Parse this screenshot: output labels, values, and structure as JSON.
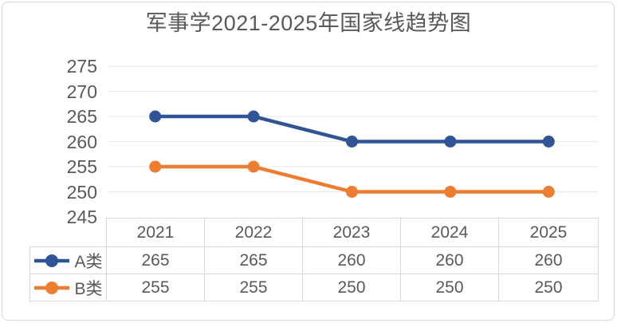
{
  "title": "军事学2021-2025年国家线趋势图",
  "chart_data": {
    "type": "line",
    "title": "军事学2021-2025年国家线趋势图",
    "categories": [
      "2021",
      "2022",
      "2023",
      "2024",
      "2025"
    ],
    "series": [
      {
        "name": "A类",
        "values": [
          265,
          265,
          260,
          260,
          260
        ],
        "color": "#2F5597"
      },
      {
        "name": "B类",
        "values": [
          255,
          255,
          250,
          250,
          250
        ],
        "color": "#ED7D31"
      }
    ],
    "xlabel": "",
    "ylabel": "",
    "ylim": [
      245,
      275
    ],
    "ytick_step": 5,
    "yticks": [
      275,
      270,
      265,
      260,
      255,
      250,
      245
    ],
    "grid": true,
    "marker": "circle",
    "legend_position": "table-left"
  },
  "colors": {
    "grid_line": "#E7E7E7",
    "table_border": "#D9D9D9",
    "text": "#595959",
    "frame_border": "#D9D9D9",
    "background": "#FFFFFF"
  }
}
